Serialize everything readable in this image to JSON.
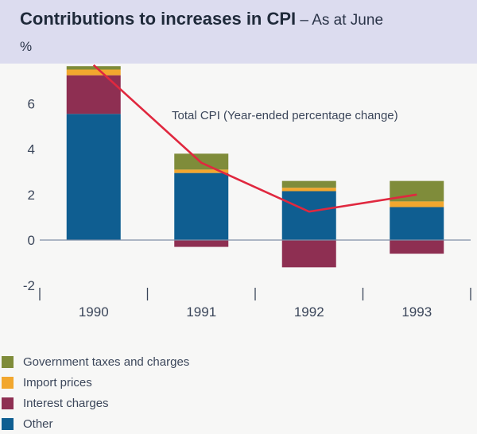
{
  "chart_data": {
    "type": "bar",
    "stacked": true,
    "title": "Contributions to increases in CPI",
    "subtitle": "As at June",
    "ylabel": "%",
    "xlabel": "",
    "ylim": [
      -2,
      8
    ],
    "yticks": [
      "6",
      "4",
      "2",
      "0",
      "-2"
    ],
    "ytick_values": [
      6,
      4,
      2,
      0,
      -2
    ],
    "categories": [
      "1990",
      "1991",
      "1992",
      "1993"
    ],
    "series": [
      {
        "name": "Other",
        "color": "#0f5e91",
        "values": [
          5.55,
          2.95,
          2.15,
          1.45
        ]
      },
      {
        "name": "Interest charges",
        "color": "#8e2f52",
        "values": [
          1.7,
          -0.3,
          -1.2,
          -0.6
        ]
      },
      {
        "name": "Import prices",
        "color": "#f2a72e",
        "values": [
          0.25,
          0.15,
          0.15,
          0.25
        ]
      },
      {
        "name": "Government taxes and charges",
        "color": "#7f8c3a",
        "values": [
          0.15,
          0.7,
          0.3,
          0.9
        ]
      }
    ],
    "line": {
      "name": "Total CPI (Year-ended percentage change)",
      "color": "#e0283f",
      "values": [
        7.7,
        3.4,
        1.25,
        2.0
      ]
    },
    "annotation": "Total CPI (Year-ended percentage change)",
    "grid": false,
    "legend_position": "bottom-left"
  },
  "header": {
    "title": "Contributions to increases in CPI",
    "dash": " – ",
    "subtitle": "As at June",
    "unit": "%"
  },
  "legend": [
    {
      "label": "Government taxes and charges",
      "color": "#7f8c3a"
    },
    {
      "label": "Import prices",
      "color": "#f2a72e"
    },
    {
      "label": "Interest charges",
      "color": "#8e2f52"
    },
    {
      "label": "Other",
      "color": "#0f5e91"
    }
  ]
}
